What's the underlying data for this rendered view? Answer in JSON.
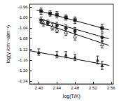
{
  "chart_data": {
    "type": "scatter",
    "x_label": "log(T/K)",
    "y_label": "log(γ /cm⁻¹atm⁻¹)",
    "xlim": [
      2.38,
      2.565
    ],
    "ylim": [
      -1.25,
      -0.95
    ],
    "xticks": [
      {
        "value": 2.4,
        "label": "2.40"
      },
      2.44,
      2.48,
      2.52,
      2.56
    ],
    "yticks": [
      -0.96,
      {
        "value": -1,
        "label": "-1.00"
      },
      -1.04,
      -1.08,
      -1.12,
      -1.16,
      {
        "value": -1.2,
        "label": "-1.20"
      },
      -1.24
    ],
    "grid": false,
    "series": [
      {
        "type": "scatter",
        "marker": "square",
        "color": "#000000",
        "x": [
          2.405,
          2.425,
          2.44,
          2.46,
          2.48,
          2.54
        ],
        "values": [
          -0.976,
          -0.985,
          -0.99,
          -1.0,
          -1.01,
          -1.04
        ],
        "errors": [
          0.012,
          0.01,
          0.012,
          0.01,
          0.012,
          0.015
        ]
      },
      {
        "type": "scatter",
        "marker": "circle",
        "color": "#000000",
        "x": [
          2.405,
          2.42,
          2.44,
          2.46,
          2.48,
          2.54
        ],
        "values": [
          -1.01,
          -1.02,
          -1.03,
          -1.04,
          -1.05,
          -1.075
        ],
        "errors": [
          0.012,
          0.01,
          0.012,
          0.012,
          0.012,
          0.015
        ]
      },
      {
        "type": "scatter",
        "marker": "triangle-open",
        "color": "#000000",
        "x": [
          2.41,
          2.43,
          2.44,
          2.46,
          2.48,
          2.54
        ],
        "values": [
          -1.02,
          -1.035,
          -1.045,
          -1.055,
          -1.07,
          -1.1
        ],
        "errors": [
          0.012,
          0.012,
          0.012,
          0.012,
          0.015,
          0.015
        ]
      },
      {
        "type": "scatter",
        "marker": "triangle",
        "color": "#000000",
        "x": [
          2.4,
          2.44,
          2.46,
          2.48,
          2.53,
          2.54
        ],
        "values": [
          -1.13,
          -1.14,
          -1.14,
          -1.15,
          -1.16,
          -1.18
        ],
        "errors": [
          0.012,
          0.012,
          0.012,
          0.012,
          0.015,
          0.015
        ]
      },
      {
        "type": "line",
        "line_style": "solid",
        "color": "#000000",
        "x": [
          2.395,
          2.555
        ],
        "values": [
          -0.972,
          -1.047
        ]
      },
      {
        "type": "line",
        "line_style": "solid",
        "color": "#000000",
        "x": [
          2.4,
          2.555
        ],
        "values": [
          -1.005,
          -1.08
        ]
      },
      {
        "type": "line",
        "line_style": "solid",
        "color": "#000000",
        "x": [
          2.4,
          2.555
        ],
        "values": [
          -1.017,
          -1.105
        ]
      },
      {
        "type": "line",
        "line_style": "solid",
        "color": "#000000",
        "x": [
          2.38,
          2.555
        ],
        "values": [
          -1.125,
          -1.18
        ]
      }
    ]
  }
}
